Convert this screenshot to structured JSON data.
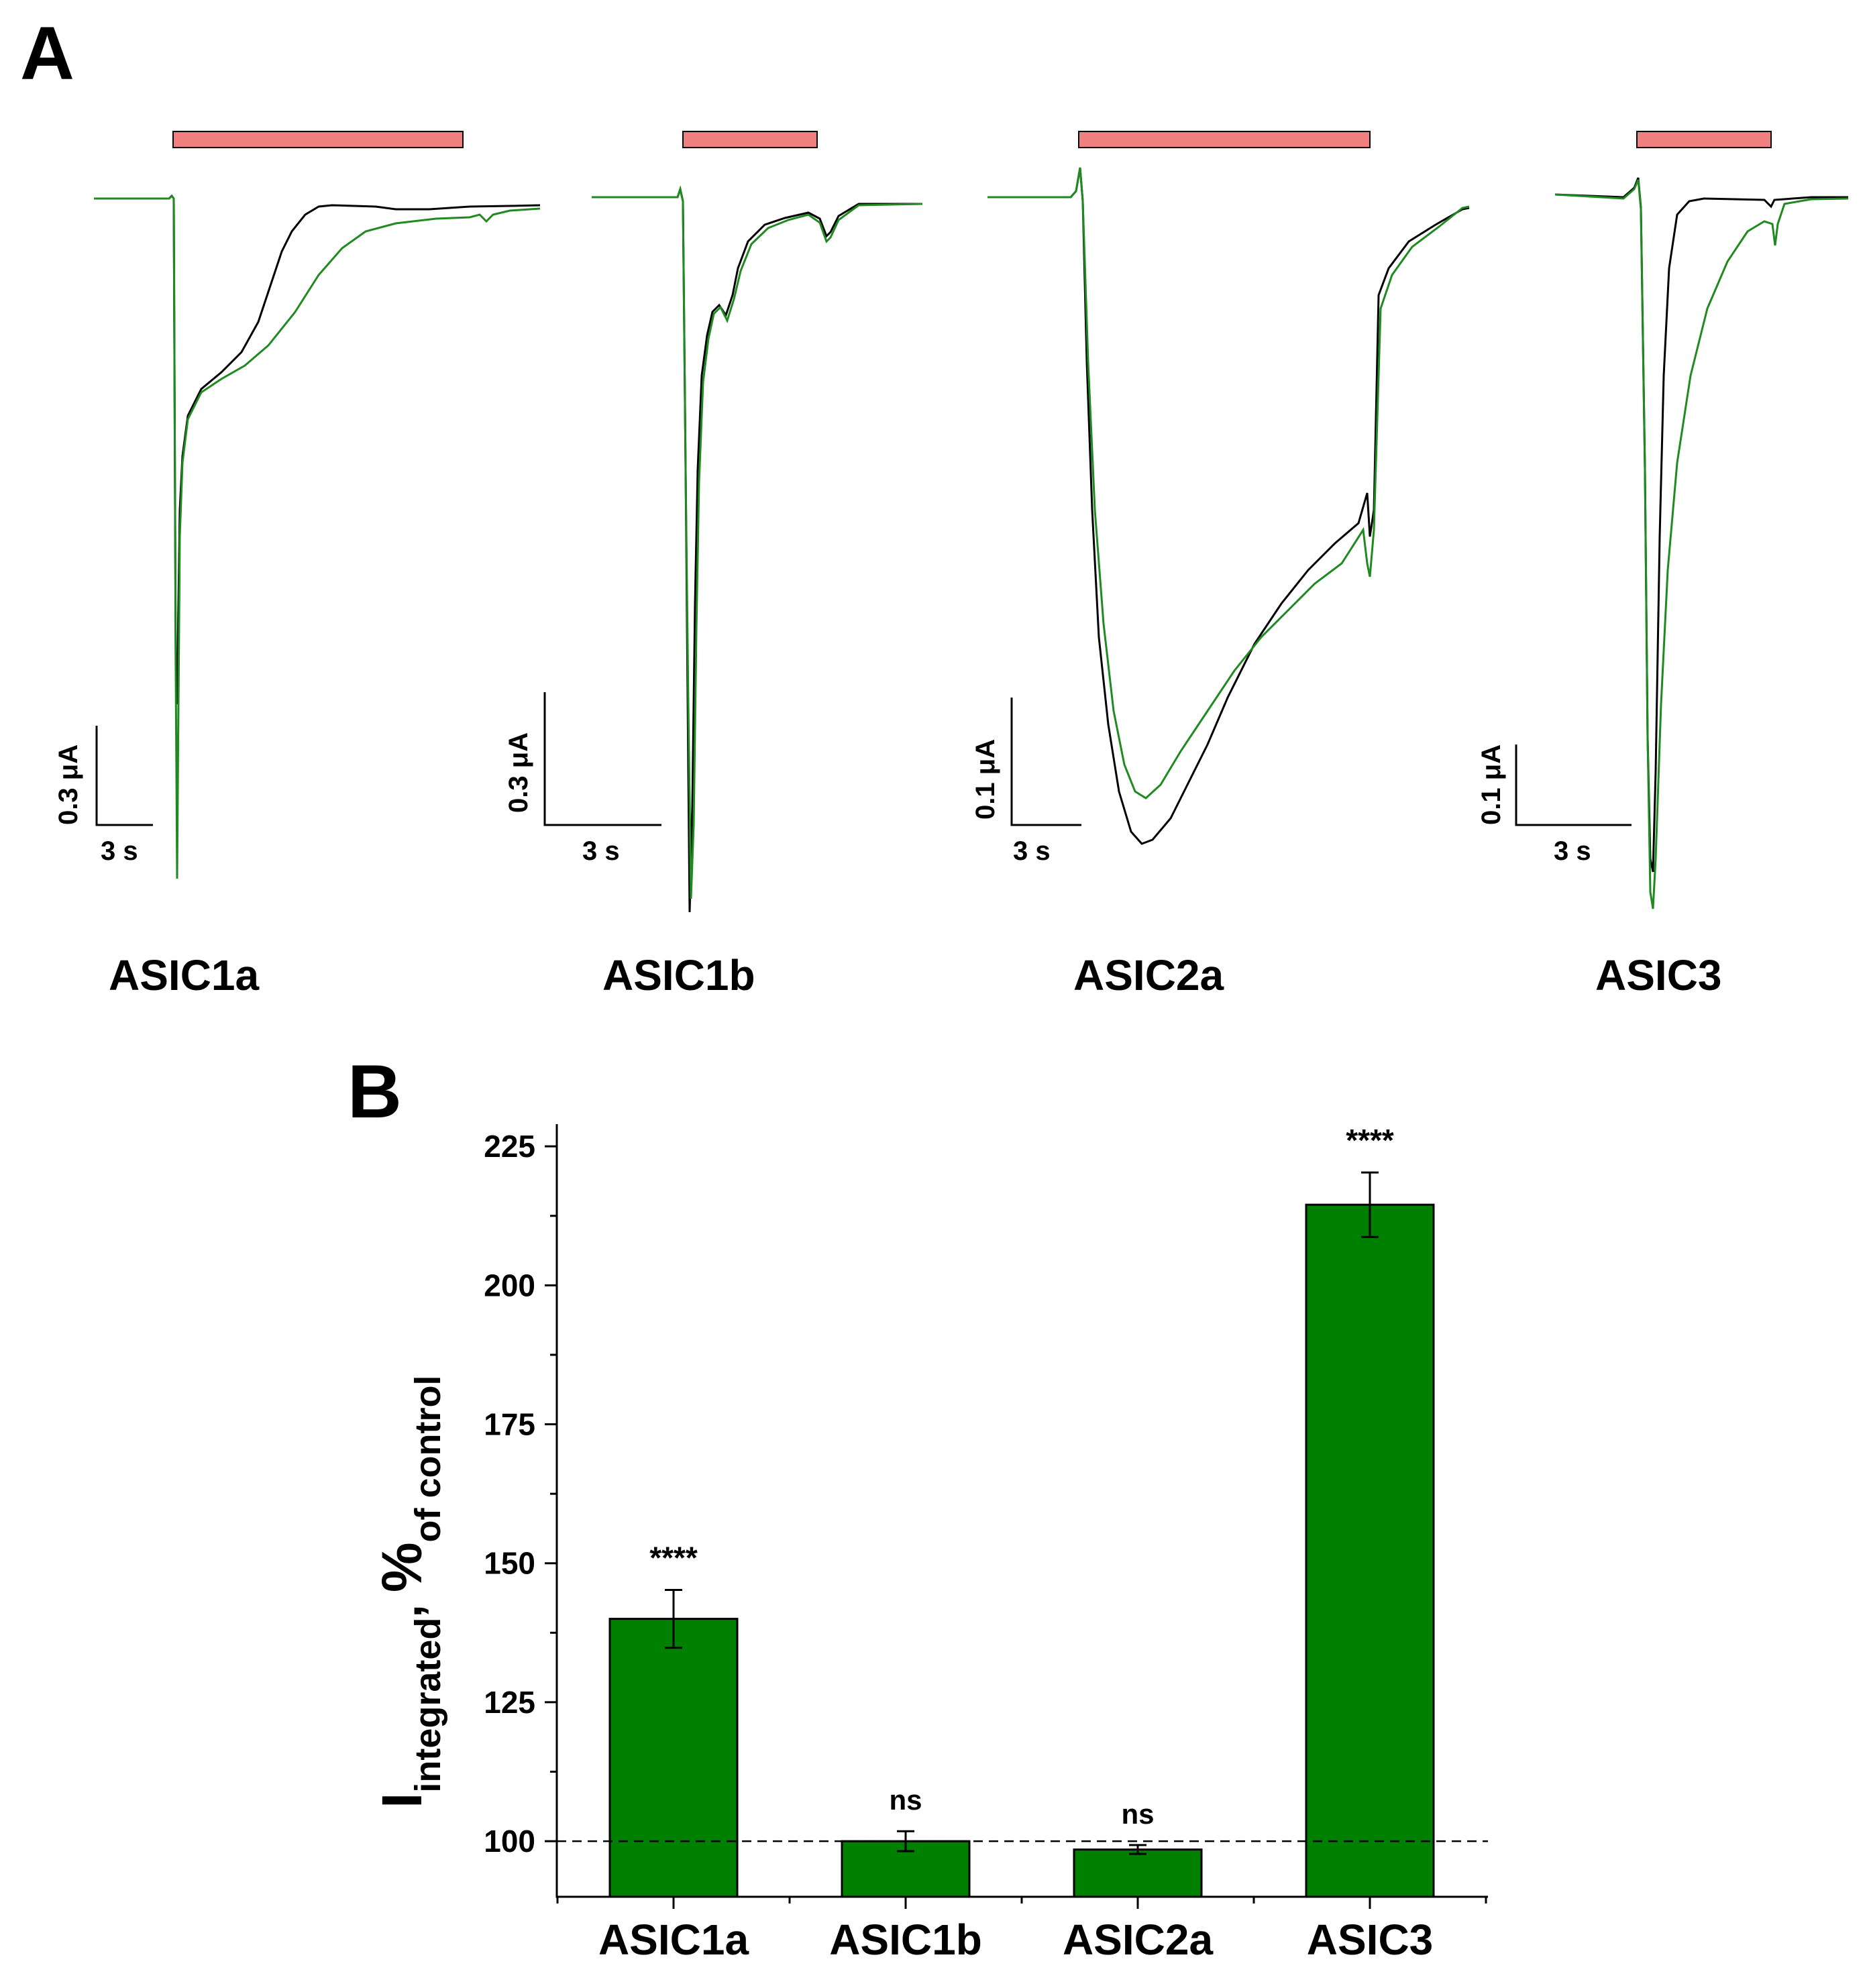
{
  "panel_a": {
    "label": "A",
    "colors": {
      "control": "#000000",
      "treated": "#1f8a1f",
      "application_bar": "#f08080"
    },
    "traces": [
      {
        "name": "ASIC1a",
        "scale_current": "0.3 μA",
        "scale_time": "3 s"
      },
      {
        "name": "ASIC1b",
        "scale_current": "0.3 μA",
        "scale_time": "3 s"
      },
      {
        "name": "ASIC2a",
        "scale_current": "0.1 μA",
        "scale_time": "3 s"
      },
      {
        "name": "ASIC3",
        "scale_current": "0.1 μA",
        "scale_time": "3 s"
      }
    ]
  },
  "panel_b": {
    "label": "B"
  },
  "chart_data": {
    "type": "bar",
    "categories": [
      "ASIC1a",
      "ASIC1b",
      "ASIC2a",
      "ASIC3"
    ],
    "values": [
      140,
      100,
      98.5,
      214.5
    ],
    "errors": [
      5.2,
      1.8,
      0.8,
      5.8
    ],
    "significance": [
      "****",
      "ns",
      "ns",
      "****"
    ],
    "ylabel_main": "I",
    "ylabel_sub": "integrated",
    "ylabel_sep": ",",
    "ylabel_pct": "%",
    "ylabel_pct_sub": "of control",
    "ylim": [
      90,
      229
    ],
    "yticks": [
      100,
      125,
      150,
      175,
      200,
      225
    ],
    "reference_line": 100,
    "bar_color": "#008000",
    "grid": false
  }
}
